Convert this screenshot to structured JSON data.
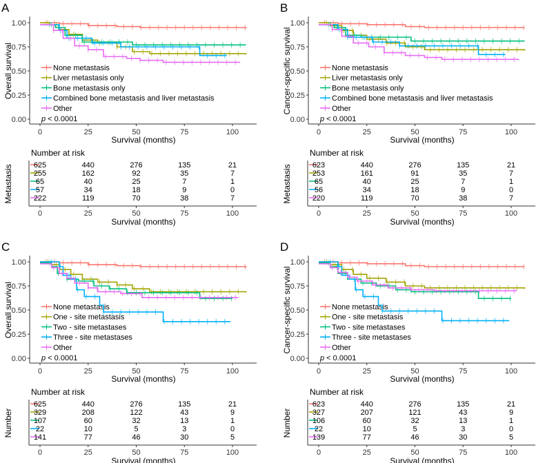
{
  "colors": [
    "#F8766D",
    "#A3A500",
    "#00BF7D",
    "#00B0F6",
    "#E76BF3"
  ],
  "chart_data": [
    {
      "type": "line",
      "panel": "A",
      "ylabel": "Overall survival",
      "xlabel": "Survival (months)",
      "xticks": [
        0,
        25,
        50,
        75,
        100
      ],
      "yticks": [
        "0.00",
        "0.25",
        "0.50",
        "0.75",
        "1.00"
      ],
      "xlim": [
        0,
        107
      ],
      "ylim": [
        0,
        1
      ],
      "pvalue_prefix": "p",
      "pvalue": " < 0.0001",
      "risk_title": "Number at risk",
      "risk_ylabel": "Metastasis",
      "series": [
        {
          "name": "None metastasis",
          "points": [
            [
              0,
              1
            ],
            [
              10,
              0.99
            ],
            [
              25,
              0.97
            ],
            [
              40,
              0.96
            ],
            [
              52,
              0.95
            ],
            [
              107,
              0.94
            ]
          ],
          "risk": [
            625,
            440,
            276,
            135,
            21
          ]
        },
        {
          "name": "Liver metastasis only",
          "points": [
            [
              0,
              1
            ],
            [
              5,
              0.98
            ],
            [
              10,
              0.93
            ],
            [
              15,
              0.88
            ],
            [
              22,
              0.82
            ],
            [
              30,
              0.79
            ],
            [
              40,
              0.75
            ],
            [
              48,
              0.7
            ],
            [
              57,
              0.68
            ],
            [
              107,
              0.67
            ]
          ],
          "risk": [
            255,
            162,
            92,
            35,
            7
          ]
        },
        {
          "name": "Bone metastasis only",
          "points": [
            [
              0,
              0.98
            ],
            [
              8,
              0.95
            ],
            [
              13,
              0.87
            ],
            [
              22,
              0.8
            ],
            [
              48,
              0.77
            ],
            [
              107,
              0.77
            ]
          ],
          "risk": [
            65,
            40,
            25,
            7,
            1
          ]
        },
        {
          "name": "Combined bone metastasis and liver metastasis",
          "points": [
            [
              0,
              0.98
            ],
            [
              10,
              0.92
            ],
            [
              14,
              0.84
            ],
            [
              27,
              0.79
            ],
            [
              42,
              0.75
            ],
            [
              83,
              0.66
            ],
            [
              97,
              0.66
            ]
          ],
          "risk": [
            57,
            34,
            18,
            9,
            0
          ]
        },
        {
          "name": "Other",
          "points": [
            [
              0,
              0.98
            ],
            [
              7,
              0.92
            ],
            [
              12,
              0.84
            ],
            [
              18,
              0.76
            ],
            [
              25,
              0.72
            ],
            [
              33,
              0.65
            ],
            [
              45,
              0.63
            ],
            [
              52,
              0.61
            ],
            [
              64,
              0.59
            ],
            [
              104,
              0.59
            ]
          ],
          "risk": [
            222,
            119,
            70,
            38,
            7
          ]
        }
      ]
    },
    {
      "type": "line",
      "panel": "B",
      "ylabel": "Cancer-specific survival",
      "xlabel": "Survival (months)",
      "xticks": [
        0,
        25,
        50,
        75,
        100
      ],
      "yticks": [
        "0.00",
        "0.25",
        "0.50",
        "0.75",
        "1.00"
      ],
      "xlim": [
        0,
        107
      ],
      "ylim": [
        0,
        1
      ],
      "pvalue_prefix": "p",
      "pvalue": " < 0.0001",
      "risk_title": "Number at risk",
      "risk_ylabel": "Metastasis",
      "series": [
        {
          "name": "None metastasis",
          "points": [
            [
              0,
              1
            ],
            [
              10,
              0.99
            ],
            [
              25,
              0.98
            ],
            [
              45,
              0.96
            ],
            [
              55,
              0.95
            ],
            [
              107,
              0.95
            ]
          ],
          "risk": [
            623,
            440,
            276,
            135,
            21
          ]
        },
        {
          "name": "Liver metastasis only",
          "points": [
            [
              0,
              1
            ],
            [
              6,
              0.97
            ],
            [
              12,
              0.92
            ],
            [
              18,
              0.87
            ],
            [
              25,
              0.83
            ],
            [
              35,
              0.79
            ],
            [
              45,
              0.75
            ],
            [
              55,
              0.72
            ],
            [
              107,
              0.71
            ]
          ],
          "risk": [
            253,
            161,
            91,
            35,
            7
          ]
        },
        {
          "name": "Bone metastasis only",
          "points": [
            [
              0,
              0.98
            ],
            [
              8,
              0.95
            ],
            [
              14,
              0.87
            ],
            [
              22,
              0.85
            ],
            [
              48,
              0.81
            ],
            [
              107,
              0.81
            ]
          ],
          "risk": [
            65,
            40,
            25,
            7,
            1
          ]
        },
        {
          "name": "Combined bone metastasis and liver metastasis",
          "points": [
            [
              0,
              0.98
            ],
            [
              10,
              0.93
            ],
            [
              15,
              0.85
            ],
            [
              28,
              0.8
            ],
            [
              42,
              0.76
            ],
            [
              83,
              0.67
            ],
            [
              97,
              0.67
            ]
          ],
          "risk": [
            56,
            34,
            18,
            9,
            0
          ]
        },
        {
          "name": "Other",
          "points": [
            [
              0,
              0.98
            ],
            [
              7,
              0.93
            ],
            [
              12,
              0.86
            ],
            [
              18,
              0.79
            ],
            [
              26,
              0.75
            ],
            [
              34,
              0.69
            ],
            [
              45,
              0.66
            ],
            [
              55,
              0.64
            ],
            [
              64,
              0.62
            ],
            [
              104,
              0.62
            ]
          ],
          "risk": [
            220,
            119,
            70,
            38,
            7
          ]
        }
      ]
    },
    {
      "type": "line",
      "panel": "C",
      "ylabel": "Overall survival",
      "xlabel": "Survival (months)",
      "xticks": [
        0,
        25,
        50,
        75,
        100
      ],
      "yticks": [
        "0.00",
        "0.25",
        "0.50",
        "0.75",
        "1.00"
      ],
      "xlim": [
        0,
        107
      ],
      "ylim": [
        0,
        1
      ],
      "pvalue_prefix": "p",
      "pvalue": " < 0.0001",
      "risk_title": "Number at risk",
      "risk_ylabel": "Number",
      "series": [
        {
          "name": "None metastasis",
          "points": [
            [
              0,
              1
            ],
            [
              10,
              0.99
            ],
            [
              25,
              0.97
            ],
            [
              40,
              0.96
            ],
            [
              52,
              0.95
            ],
            [
              107,
              0.94
            ]
          ],
          "risk": [
            625,
            440,
            276,
            135,
            21
          ]
        },
        {
          "name": "One - site metastasis",
          "points": [
            [
              0,
              1
            ],
            [
              6,
              0.97
            ],
            [
              10,
              0.92
            ],
            [
              16,
              0.87
            ],
            [
              22,
              0.82
            ],
            [
              30,
              0.79
            ],
            [
              40,
              0.76
            ],
            [
              48,
              0.72
            ],
            [
              57,
              0.69
            ],
            [
              107,
              0.68
            ]
          ],
          "risk": [
            329,
            208,
            122,
            43,
            9
          ]
        },
        {
          "name": "Two - site metastases",
          "points": [
            [
              0,
              0.99
            ],
            [
              6,
              0.95
            ],
            [
              9,
              0.88
            ],
            [
              14,
              0.82
            ],
            [
              20,
              0.8
            ],
            [
              28,
              0.75
            ],
            [
              36,
              0.72
            ],
            [
              45,
              0.68
            ],
            [
              83,
              0.62
            ],
            [
              100,
              0.62
            ]
          ],
          "risk": [
            107,
            60,
            32,
            13,
            1
          ]
        },
        {
          "name": "Three - site metastases",
          "points": [
            [
              0,
              1
            ],
            [
              10,
              0.95
            ],
            [
              12,
              0.86
            ],
            [
              16,
              0.82
            ],
            [
              19,
              0.71
            ],
            [
              23,
              0.64
            ],
            [
              31,
              0.55
            ],
            [
              33,
              0.48
            ],
            [
              64,
              0.38
            ],
            [
              99,
              0.38
            ]
          ],
          "risk": [
            22,
            10,
            5,
            3,
            0
          ]
        },
        {
          "name": "Other",
          "points": [
            [
              0,
              0.98
            ],
            [
              6,
              0.94
            ],
            [
              10,
              0.88
            ],
            [
              14,
              0.83
            ],
            [
              18,
              0.78
            ],
            [
              25,
              0.73
            ],
            [
              30,
              0.69
            ],
            [
              42,
              0.67
            ],
            [
              53,
              0.63
            ],
            [
              103,
              0.63
            ]
          ],
          "risk": [
            141,
            77,
            46,
            30,
            5
          ]
        }
      ]
    },
    {
      "type": "line",
      "panel": "D",
      "ylabel": "Cancer-specific survival",
      "xlabel": "Survival (months)",
      "xticks": [
        0,
        25,
        50,
        75,
        100
      ],
      "yticks": [
        "0.00",
        "0.25",
        "0.50",
        "0.75",
        "1.00"
      ],
      "xlim": [
        0,
        107
      ],
      "ylim": [
        0,
        1
      ],
      "pvalue_prefix": "p",
      "pvalue": " < 0.0001",
      "risk_title": "Number at risk",
      "risk_ylabel": "Number",
      "series": [
        {
          "name": "None metastasis",
          "points": [
            [
              0,
              1
            ],
            [
              10,
              0.99
            ],
            [
              25,
              0.98
            ],
            [
              45,
              0.96
            ],
            [
              55,
              0.95
            ],
            [
              107,
              0.95
            ]
          ],
          "risk": [
            623,
            440,
            276,
            135,
            21
          ]
        },
        {
          "name": "One - site metastasis",
          "points": [
            [
              0,
              1
            ],
            [
              6,
              0.97
            ],
            [
              12,
              0.92
            ],
            [
              18,
              0.87
            ],
            [
              25,
              0.83
            ],
            [
              35,
              0.79
            ],
            [
              45,
              0.75
            ],
            [
              55,
              0.73
            ],
            [
              107,
              0.72
            ]
          ],
          "risk": [
            327,
            207,
            121,
            43,
            9
          ]
        },
        {
          "name": "Two - site metastases",
          "points": [
            [
              0,
              0.99
            ],
            [
              6,
              0.95
            ],
            [
              10,
              0.88
            ],
            [
              15,
              0.82
            ],
            [
              22,
              0.78
            ],
            [
              30,
              0.75
            ],
            [
              40,
              0.71
            ],
            [
              48,
              0.69
            ],
            [
              83,
              0.62
            ],
            [
              100,
              0.62
            ]
          ],
          "risk": [
            106,
            60,
            32,
            13,
            1
          ]
        },
        {
          "name": "Three - site metastases",
          "points": [
            [
              0,
              1
            ],
            [
              10,
              0.95
            ],
            [
              12,
              0.86
            ],
            [
              16,
              0.82
            ],
            [
              19,
              0.71
            ],
            [
              23,
              0.64
            ],
            [
              31,
              0.55
            ],
            [
              33,
              0.49
            ],
            [
              64,
              0.39
            ],
            [
              99,
              0.39
            ]
          ],
          "risk": [
            22,
            10,
            5,
            3,
            0
          ]
        },
        {
          "name": "Other",
          "points": [
            [
              0,
              0.98
            ],
            [
              6,
              0.94
            ],
            [
              10,
              0.89
            ],
            [
              15,
              0.84
            ],
            [
              20,
              0.8
            ],
            [
              28,
              0.76
            ],
            [
              36,
              0.73
            ],
            [
              48,
              0.71
            ],
            [
              60,
              0.7
            ],
            [
              103,
              0.7
            ]
          ],
          "risk": [
            139,
            77,
            46,
            30,
            5
          ]
        }
      ]
    }
  ]
}
